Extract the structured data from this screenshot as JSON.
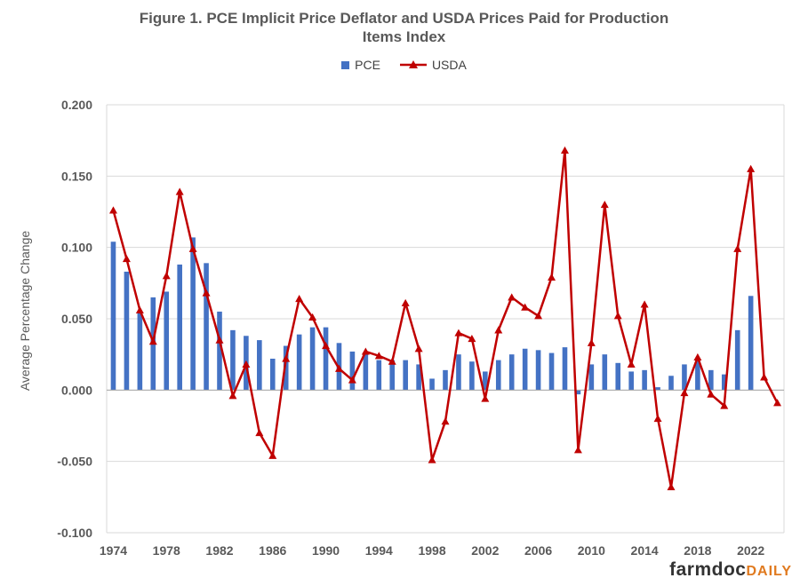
{
  "chart_data": {
    "type": "bar",
    "title_line1": "Figure 1. PCE Implicit Price Deflator and USDA Prices Paid for Production",
    "title_line2": "Items Index",
    "ylabel": "Average Percentage Change",
    "xlabel": "",
    "ylim": [
      -0.1,
      0.2
    ],
    "yticks": [
      -0.1,
      -0.05,
      0,
      0.05,
      0.1,
      0.15,
      0.2
    ],
    "ytick_labels": [
      "-0.100",
      "-0.050",
      "0.000",
      "0.050",
      "0.100",
      "0.150",
      "0.200"
    ],
    "xtick_labels": [
      "1974",
      "1978",
      "1982",
      "1986",
      "1990",
      "1994",
      "1998",
      "2002",
      "2006",
      "2010",
      "2014",
      "2018",
      "2022"
    ],
    "grid": true,
    "legend_position": "top",
    "categories": [
      1974,
      1975,
      1976,
      1977,
      1978,
      1979,
      1980,
      1981,
      1982,
      1983,
      1984,
      1985,
      1986,
      1987,
      1988,
      1989,
      1990,
      1991,
      1992,
      1993,
      1994,
      1995,
      1996,
      1997,
      1998,
      1999,
      2000,
      2001,
      2002,
      2003,
      2004,
      2005,
      2006,
      2007,
      2008,
      2009,
      2010,
      2011,
      2012,
      2013,
      2014,
      2015,
      2016,
      2017,
      2018,
      2019,
      2020,
      2021,
      2022,
      2023,
      2024
    ],
    "series": [
      {
        "name": "PCE",
        "kind": "bar",
        "color": "#4472C4",
        "values": [
          0.104,
          0.083,
          0.055,
          0.065,
          0.069,
          0.088,
          0.107,
          0.089,
          0.055,
          0.042,
          0.038,
          0.035,
          0.022,
          0.031,
          0.039,
          0.044,
          0.044,
          0.033,
          0.027,
          0.025,
          0.021,
          0.021,
          0.021,
          0.018,
          0.008,
          0.014,
          0.025,
          0.02,
          0.013,
          0.021,
          0.025,
          0.029,
          0.028,
          0.026,
          0.03,
          -0.003,
          0.018,
          0.025,
          0.019,
          0.013,
          0.014,
          0.002,
          0.01,
          0.018,
          0.021,
          0.014,
          0.011,
          0.042,
          0.066,
          null,
          null
        ]
      },
      {
        "name": "USDA",
        "kind": "line",
        "color": "#C00000",
        "values": [
          0.126,
          0.092,
          0.056,
          0.034,
          0.08,
          0.139,
          0.099,
          0.068,
          0.035,
          -0.004,
          0.018,
          -0.03,
          -0.046,
          0.022,
          0.064,
          0.051,
          0.031,
          0.015,
          0.007,
          0.027,
          0.024,
          0.02,
          0.061,
          0.029,
          -0.049,
          -0.022,
          0.04,
          0.036,
          -0.006,
          0.042,
          0.065,
          0.058,
          0.052,
          0.079,
          0.168,
          -0.042,
          0.033,
          0.13,
          0.052,
          0.018,
          0.06,
          -0.02,
          -0.068,
          -0.002,
          0.023,
          -0.003,
          -0.011,
          0.099,
          0.155,
          0.009,
          -0.009
        ]
      }
    ]
  },
  "brand": {
    "part1": "farmdoc",
    "part2": "DAILY"
  }
}
